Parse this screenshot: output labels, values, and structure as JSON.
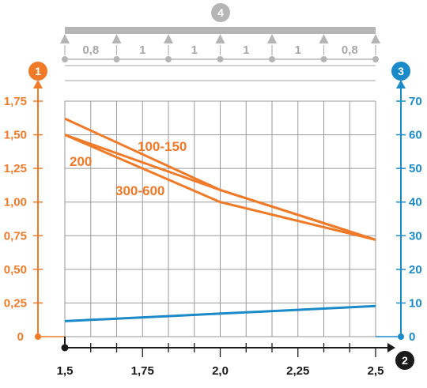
{
  "colors": {
    "load": "#f07a28",
    "deflection": "#1a8ac8",
    "axis": "#1a1a1a",
    "grid": "#9a9a9a",
    "beam": "#b5b5b5"
  },
  "badges": {
    "load_axis": "1",
    "span_axis": "2",
    "deflection_axis": "3",
    "beam": "4"
  },
  "span_lengths": [
    "0,8",
    "1",
    "1",
    "1",
    "1",
    "0,8"
  ],
  "chart_data": {
    "type": "line",
    "x_ticks": [
      "1,5",
      "1,75",
      "2,0",
      "2,25",
      "2,5"
    ],
    "xlim": [
      1.5,
      2.5
    ],
    "y_left_ticks": [
      "0",
      "0,25",
      "0,50",
      "0,75",
      "1,00",
      "1,25",
      "1,50",
      "1,75"
    ],
    "ylim_left": [
      0,
      1.75
    ],
    "y_right_ticks": [
      "0",
      "10",
      "20",
      "30",
      "40",
      "50",
      "60",
      "70"
    ],
    "ylim_right": [
      0,
      70
    ],
    "grid": true,
    "series": [
      {
        "name": "100-150",
        "axis": "left",
        "x": [
          1.5,
          2.0,
          2.5
        ],
        "y": [
          1.62,
          1.09,
          0.72
        ]
      },
      {
        "name": "200",
        "axis": "left",
        "x": [
          1.5,
          2.0,
          2.5
        ],
        "y": [
          1.5,
          1.09,
          0.72
        ]
      },
      {
        "name": "300-600",
        "axis": "left",
        "x": [
          1.5,
          2.0,
          2.5
        ],
        "y": [
          1.5,
          1.0,
          0.72
        ]
      },
      {
        "name": "",
        "axis": "right",
        "x": [
          1.5,
          2.5
        ],
        "y": [
          4.6,
          9.1
        ]
      }
    ]
  }
}
